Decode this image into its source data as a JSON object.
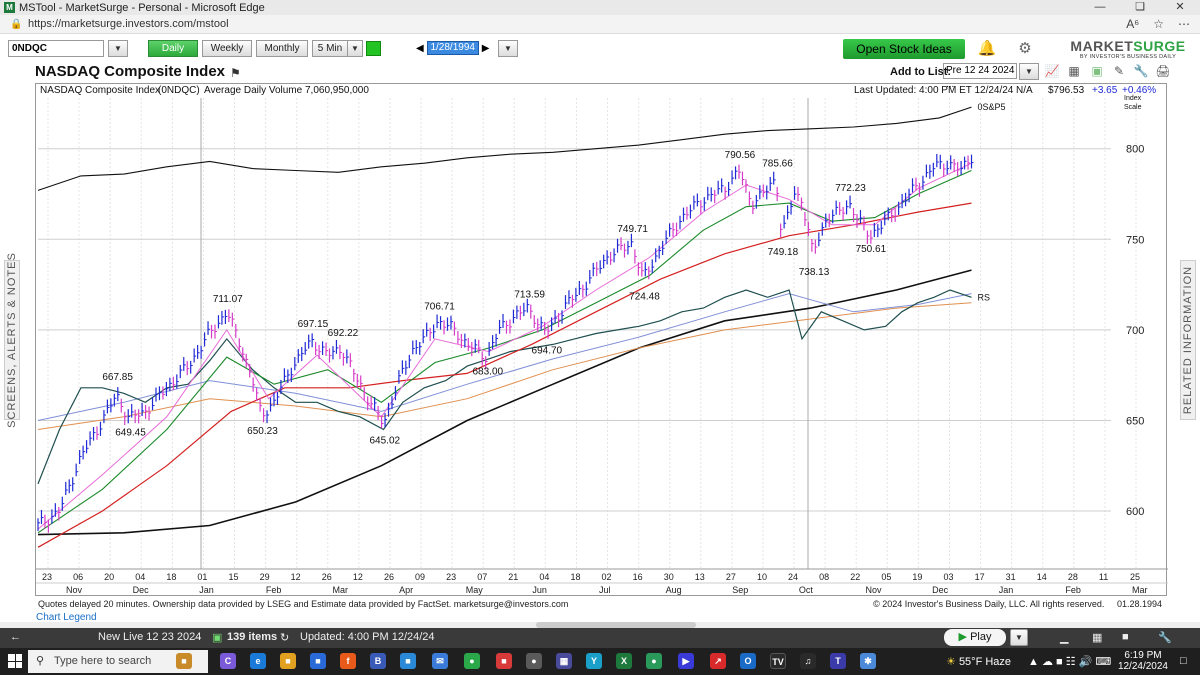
{
  "window": {
    "title": "MSTool - MarketSurge - Personal - Microsoft Edge",
    "url": "https://marketsurge.investors.com/mstool"
  },
  "toolbar": {
    "symbol": "0NDQC",
    "periods": [
      "Daily",
      "Weekly",
      "Monthly",
      "5 Min"
    ],
    "active_period": "Daily",
    "date": "1/28/1994",
    "open_ideas": "Open Stock Ideas",
    "logo_main": "MARKET",
    "logo_accent": "SURGE",
    "logo_sub": "BY INVESTOR'S BUSINESS DAILY"
  },
  "chart_header": {
    "title": "NASDAQ Composite Index",
    "add_to_list_label": "Add to List:",
    "add_to_list_value": "Pre 12 24 2024 ..."
  },
  "info_bar": {
    "name": "NASDAQ Composite Index",
    "symbol": "(0NDQC)",
    "avg_volume": "Average Daily Volume 7,060,950,000",
    "updated": "Last Updated: 4:00 PM ET 12/24/24",
    "na": "N/A",
    "price": "$796.53",
    "change": "+3.65",
    "change_pct": "+0.46%",
    "scale_label_1": "Index",
    "scale_label_2": "Scale"
  },
  "side_tabs": {
    "left": "SCREENS, ALERTS & NOTES",
    "right": "RELATED INFORMATION"
  },
  "chart_data": {
    "type": "line",
    "title": "NASDAQ Composite Index",
    "y_ticks": [
      800,
      750,
      700,
      650,
      600
    ],
    "ylim": [
      568,
      828
    ],
    "x_ticks": [
      "23",
      "06",
      "20",
      "04",
      "18",
      "01",
      "15",
      "29",
      "12",
      "26",
      "12",
      "26",
      "09",
      "23",
      "07",
      "21",
      "04",
      "18",
      "02",
      "16",
      "30",
      "13",
      "27",
      "10",
      "24",
      "08",
      "22",
      "05",
      "19",
      "03",
      "17",
      "31",
      "14",
      "28",
      "11",
      "25"
    ],
    "month_labels": [
      "Nov",
      "Dec",
      "Jan",
      "Feb",
      "Mar",
      "Apr",
      "May",
      "Jun",
      "Jul",
      "Aug",
      "Sep",
      "Oct",
      "Nov",
      "Dec",
      "Jan",
      "Feb",
      "Mar"
    ],
    "overlay_labels": [
      "0S&P5",
      "RS"
    ],
    "annotations": [
      {
        "label": "667.85",
        "x": 0.073,
        "y": 667.85,
        "type": "high"
      },
      {
        "label": "649.45",
        "x": 0.085,
        "y": 649.45,
        "type": "low"
      },
      {
        "label": "711.07",
        "x": 0.176,
        "y": 711.07,
        "type": "high"
      },
      {
        "label": "650.23",
        "x": 0.208,
        "y": 650.23,
        "type": "low"
      },
      {
        "label": "697.15",
        "x": 0.255,
        "y": 697.15,
        "type": "high"
      },
      {
        "label": "692.22",
        "x": 0.283,
        "y": 692.22,
        "type": "high"
      },
      {
        "label": "645.02",
        "x": 0.322,
        "y": 645.02,
        "type": "low"
      },
      {
        "label": "706.71",
        "x": 0.373,
        "y": 706.71,
        "type": "high"
      },
      {
        "label": "683.00",
        "x": 0.418,
        "y": 683.0,
        "type": "low"
      },
      {
        "label": "713.59",
        "x": 0.457,
        "y": 713.59,
        "type": "high"
      },
      {
        "label": "694.70",
        "x": 0.473,
        "y": 694.7,
        "type": "low"
      },
      {
        "label": "749.71",
        "x": 0.553,
        "y": 749.71,
        "type": "high"
      },
      {
        "label": "724.48",
        "x": 0.564,
        "y": 724.48,
        "type": "low"
      },
      {
        "label": "790.56",
        "x": 0.653,
        "y": 790.56,
        "type": "high"
      },
      {
        "label": "785.66",
        "x": 0.688,
        "y": 785.66,
        "type": "high"
      },
      {
        "label": "749.18",
        "x": 0.693,
        "y": 749.18,
        "type": "low"
      },
      {
        "label": "738.13",
        "x": 0.722,
        "y": 738.13,
        "type": "low"
      },
      {
        "label": "772.23",
        "x": 0.756,
        "y": 772.23,
        "type": "high"
      },
      {
        "label": "750.61",
        "x": 0.775,
        "y": 750.61,
        "type": "low"
      }
    ],
    "price_series": [
      [
        0.0,
        592
      ],
      [
        0.02,
        600
      ],
      [
        0.04,
        630
      ],
      [
        0.06,
        650
      ],
      [
        0.073,
        664
      ],
      [
        0.085,
        651
      ],
      [
        0.1,
        655
      ],
      [
        0.12,
        668
      ],
      [
        0.14,
        680
      ],
      [
        0.16,
        698
      ],
      [
        0.176,
        710
      ],
      [
        0.19,
        690
      ],
      [
        0.2,
        672
      ],
      [
        0.208,
        653
      ],
      [
        0.22,
        660
      ],
      [
        0.235,
        678
      ],
      [
        0.255,
        694
      ],
      [
        0.27,
        686
      ],
      [
        0.283,
        690
      ],
      [
        0.295,
        675
      ],
      [
        0.31,
        660
      ],
      [
        0.322,
        648
      ],
      [
        0.335,
        670
      ],
      [
        0.35,
        690
      ],
      [
        0.362,
        696
      ],
      [
        0.373,
        705
      ],
      [
        0.388,
        700
      ],
      [
        0.4,
        692
      ],
      [
        0.418,
        685
      ],
      [
        0.43,
        700
      ],
      [
        0.445,
        708
      ],
      [
        0.457,
        712
      ],
      [
        0.473,
        698
      ],
      [
        0.49,
        712
      ],
      [
        0.51,
        725
      ],
      [
        0.53,
        740
      ],
      [
        0.553,
        748
      ],
      [
        0.564,
        728
      ],
      [
        0.58,
        745
      ],
      [
        0.6,
        762
      ],
      [
        0.62,
        772
      ],
      [
        0.64,
        778
      ],
      [
        0.653,
        788
      ],
      [
        0.665,
        770
      ],
      [
        0.678,
        776
      ],
      [
        0.688,
        784
      ],
      [
        0.693,
        752
      ],
      [
        0.705,
        775
      ],
      [
        0.712,
        772
      ],
      [
        0.722,
        742
      ],
      [
        0.735,
        762
      ],
      [
        0.748,
        765
      ],
      [
        0.756,
        770
      ],
      [
        0.765,
        760
      ],
      [
        0.775,
        752
      ],
      [
        0.79,
        760
      ],
      [
        0.805,
        770
      ],
      [
        0.82,
        780
      ],
      [
        0.835,
        790
      ],
      [
        0.848,
        792
      ],
      [
        0.86,
        788
      ],
      [
        0.87,
        796
      ]
    ],
    "sp500_series": [
      [
        0.0,
        777
      ],
      [
        0.04,
        785
      ],
      [
        0.08,
        786
      ],
      [
        0.12,
        790
      ],
      [
        0.16,
        793
      ],
      [
        0.2,
        789
      ],
      [
        0.24,
        788
      ],
      [
        0.28,
        787
      ],
      [
        0.32,
        790
      ],
      [
        0.36,
        792
      ],
      [
        0.4,
        795
      ],
      [
        0.44,
        797
      ],
      [
        0.48,
        798
      ],
      [
        0.52,
        800
      ],
      [
        0.56,
        802
      ],
      [
        0.6,
        805
      ],
      [
        0.64,
        808
      ],
      [
        0.68,
        810
      ],
      [
        0.72,
        811
      ],
      [
        0.76,
        812
      ],
      [
        0.8,
        814
      ],
      [
        0.84,
        817
      ],
      [
        0.87,
        823
      ]
    ],
    "rs_series": [
      [
        0.0,
        615
      ],
      [
        0.02,
        645
      ],
      [
        0.04,
        668
      ],
      [
        0.06,
        668
      ],
      [
        0.08,
        665
      ],
      [
        0.1,
        660
      ],
      [
        0.12,
        668
      ],
      [
        0.14,
        670
      ],
      [
        0.16,
        683
      ],
      [
        0.176,
        695
      ],
      [
        0.2,
        678
      ],
      [
        0.22,
        668
      ],
      [
        0.24,
        660
      ],
      [
        0.26,
        660
      ],
      [
        0.28,
        655
      ],
      [
        0.3,
        652
      ],
      [
        0.322,
        645
      ],
      [
        0.34,
        660
      ],
      [
        0.36,
        668
      ],
      [
        0.38,
        672
      ],
      [
        0.4,
        680
      ],
      [
        0.42,
        684
      ],
      [
        0.44,
        688
      ],
      [
        0.46,
        690
      ],
      [
        0.48,
        692
      ],
      [
        0.5,
        695
      ],
      [
        0.52,
        698
      ],
      [
        0.54,
        700
      ],
      [
        0.56,
        702
      ],
      [
        0.58,
        705
      ],
      [
        0.6,
        710
      ],
      [
        0.62,
        712
      ],
      [
        0.64,
        718
      ],
      [
        0.66,
        722
      ],
      [
        0.68,
        718
      ],
      [
        0.7,
        722
      ],
      [
        0.712,
        695
      ],
      [
        0.73,
        710
      ],
      [
        0.75,
        705
      ],
      [
        0.77,
        700
      ],
      [
        0.79,
        702
      ],
      [
        0.805,
        710
      ],
      [
        0.82,
        715
      ],
      [
        0.835,
        718
      ],
      [
        0.85,
        722
      ],
      [
        0.87,
        718
      ]
    ],
    "ma200_series": [
      [
        0.0,
        587
      ],
      [
        0.08,
        588
      ],
      [
        0.16,
        592
      ],
      [
        0.24,
        605
      ],
      [
        0.32,
        625
      ],
      [
        0.4,
        650
      ],
      [
        0.48,
        670
      ],
      [
        0.56,
        690
      ],
      [
        0.64,
        705
      ],
      [
        0.72,
        712
      ],
      [
        0.8,
        722
      ],
      [
        0.87,
        733
      ]
    ],
    "ma50_series": [
      [
        0.0,
        580
      ],
      [
        0.06,
        600
      ],
      [
        0.12,
        625
      ],
      [
        0.18,
        655
      ],
      [
        0.23,
        668
      ],
      [
        0.29,
        668
      ],
      [
        0.34,
        672
      ],
      [
        0.4,
        676
      ],
      [
        0.46,
        692
      ],
      [
        0.52,
        710
      ],
      [
        0.58,
        728
      ],
      [
        0.64,
        742
      ],
      [
        0.7,
        752
      ],
      [
        0.76,
        758
      ],
      [
        0.82,
        765
      ],
      [
        0.87,
        770
      ]
    ],
    "ma21_series": [
      [
        0.0,
        588
      ],
      [
        0.06,
        612
      ],
      [
        0.12,
        645
      ],
      [
        0.176,
        685
      ],
      [
        0.22,
        670
      ],
      [
        0.27,
        678
      ],
      [
        0.32,
        660
      ],
      [
        0.37,
        682
      ],
      [
        0.42,
        690
      ],
      [
        0.47,
        700
      ],
      [
        0.52,
        715
      ],
      [
        0.57,
        730
      ],
      [
        0.62,
        755
      ],
      [
        0.66,
        768
      ],
      [
        0.7,
        770
      ],
      [
        0.74,
        760
      ],
      [
        0.78,
        762
      ],
      [
        0.82,
        775
      ],
      [
        0.87,
        788
      ]
    ],
    "ma10_series": [
      [
        0.0,
        590
      ],
      [
        0.06,
        620
      ],
      [
        0.12,
        652
      ],
      [
        0.176,
        700
      ],
      [
        0.215,
        662
      ],
      [
        0.26,
        686
      ],
      [
        0.32,
        652
      ],
      [
        0.37,
        695
      ],
      [
        0.42,
        688
      ],
      [
        0.47,
        702
      ],
      [
        0.52,
        722
      ],
      [
        0.57,
        740
      ],
      [
        0.62,
        765
      ],
      [
        0.66,
        780
      ],
      [
        0.7,
        772
      ],
      [
        0.74,
        758
      ],
      [
        0.78,
        758
      ],
      [
        0.82,
        778
      ],
      [
        0.87,
        792
      ]
    ],
    "mavol_series": [
      [
        0.0,
        645
      ],
      [
        0.08,
        652
      ],
      [
        0.16,
        662
      ],
      [
        0.24,
        658
      ],
      [
        0.32,
        652
      ],
      [
        0.4,
        662
      ],
      [
        0.48,
        678
      ],
      [
        0.56,
        690
      ],
      [
        0.64,
        700
      ],
      [
        0.72,
        706
      ],
      [
        0.8,
        712
      ],
      [
        0.87,
        715
      ]
    ],
    "mavol2_series": [
      [
        0.0,
        650
      ],
      [
        0.08,
        660
      ],
      [
        0.16,
        672
      ],
      [
        0.24,
        665
      ],
      [
        0.32,
        655
      ],
      [
        0.4,
        670
      ],
      [
        0.48,
        684
      ],
      [
        0.56,
        696
      ],
      [
        0.64,
        710
      ],
      [
        0.7,
        720
      ],
      [
        0.76,
        710
      ],
      [
        0.82,
        714
      ],
      [
        0.87,
        720
      ]
    ],
    "colors": {
      "price_up": "#1f2ad6",
      "price_down": "#d63ac8",
      "sp500": "#111111",
      "rs": "#1f4f4f",
      "ma200": "#111111",
      "ma50": "#d42020",
      "ma21": "#1a8a2a",
      "ma10": "#e86ad8",
      "mavol": "#e09050",
      "mavol2": "#8090d8"
    }
  },
  "footer": {
    "disclaimer": "Quotes delayed 20 minutes. Ownership data provided by LSEG and Estimate data provided by FactSet. marketsurge@investors.com",
    "copyright": "© 2024 Investor's Business Daily, LLC. All rights reserved.",
    "chart_date": "01.28.1994",
    "legend_link": "Chart Legend"
  },
  "appbar": {
    "list_name": "New Live 12 23 2024",
    "item_count": "139 items",
    "updated": "Updated: 4:00 PM 12/24/24",
    "play": "Play"
  },
  "taskbar": {
    "search_placeholder": "Type here to search",
    "weather": "55°F Haze",
    "time": "6:19 PM",
    "date": "12/24/2024"
  }
}
